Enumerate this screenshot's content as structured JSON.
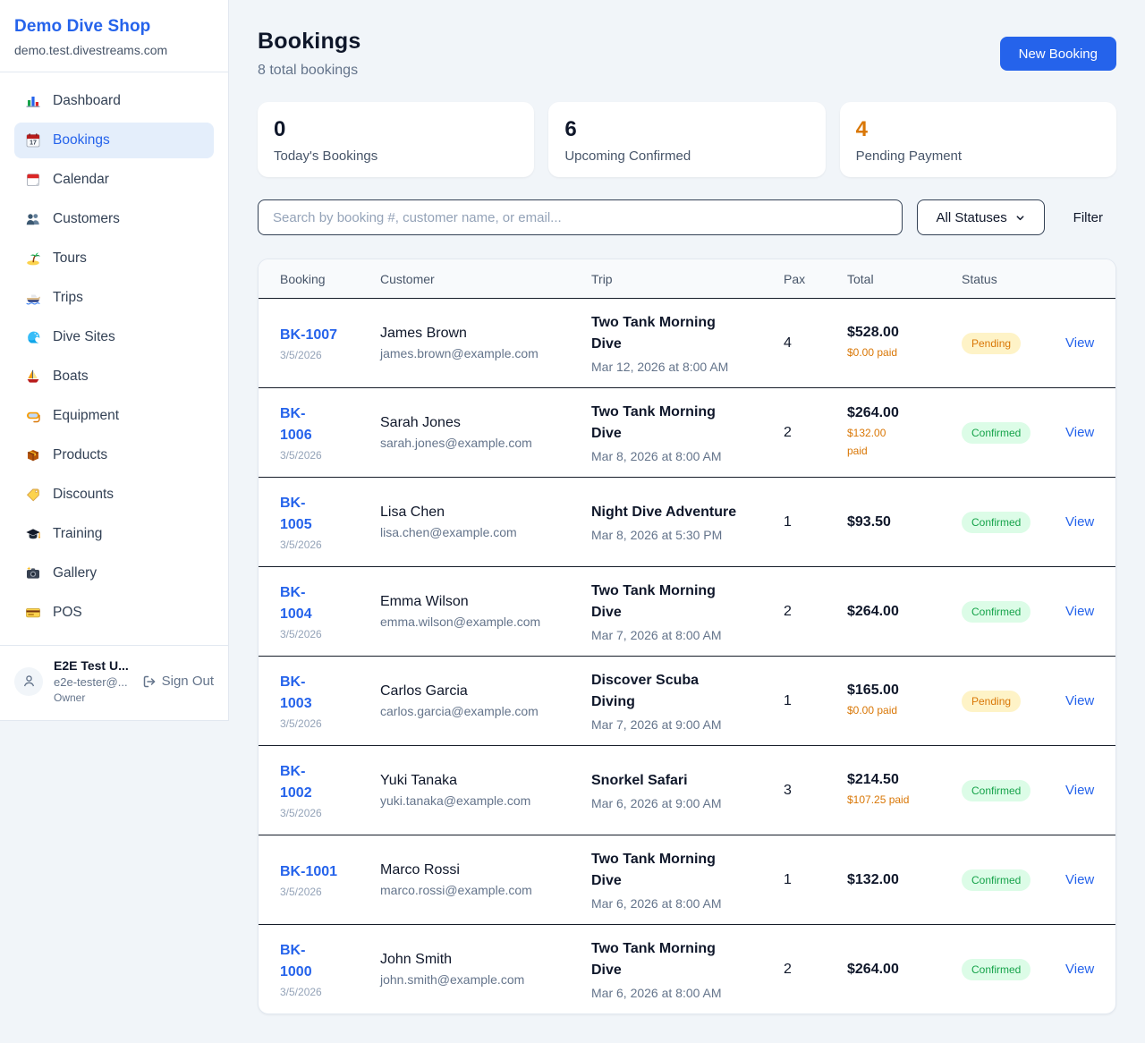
{
  "brand": {
    "name": "Demo Dive Shop",
    "domain": "demo.test.divestreams.com"
  },
  "sidebar": {
    "items": [
      {
        "icon": "bar-chart-icon",
        "label": "Dashboard",
        "active": false
      },
      {
        "icon": "bookings-calendar-icon",
        "label": "Bookings",
        "active": true
      },
      {
        "icon": "tear-off-calendar-icon",
        "label": "Calendar",
        "active": false
      },
      {
        "icon": "people-icon",
        "label": "Customers",
        "active": false
      },
      {
        "icon": "island-icon",
        "label": "Tours",
        "active": false
      },
      {
        "icon": "speedboat-icon",
        "label": "Trips",
        "active": false
      },
      {
        "icon": "wave-icon",
        "label": "Dive Sites",
        "active": false
      },
      {
        "icon": "sailboat-icon",
        "label": "Boats",
        "active": false
      },
      {
        "icon": "dive-mask-icon",
        "label": "Equipment",
        "active": false
      },
      {
        "icon": "package-icon",
        "label": "Products",
        "active": false
      },
      {
        "icon": "tag-icon",
        "label": "Discounts",
        "active": false
      },
      {
        "icon": "graduation-cap-icon",
        "label": "Training",
        "active": false
      },
      {
        "icon": "camera-icon",
        "label": "Gallery",
        "active": false
      },
      {
        "icon": "credit-card-icon",
        "label": "POS",
        "active": false
      }
    ]
  },
  "user": {
    "name": "E2E Test U...",
    "email": "e2e-tester@...",
    "role": "Owner",
    "signout_label": "Sign Out"
  },
  "header": {
    "title": "Bookings",
    "subtitle": "8 total bookings",
    "new_booking_label": "New Booking"
  },
  "stats": [
    {
      "value": "0",
      "label": "Today's Bookings",
      "color": "#0f172a"
    },
    {
      "value": "6",
      "label": "Upcoming Confirmed",
      "color": "#0f172a"
    },
    {
      "value": "4",
      "label": "Pending Payment",
      "color": "#d97706"
    }
  ],
  "filters": {
    "search_placeholder": "Search by booking #, customer name, or email...",
    "status_selected": "All Statuses",
    "filter_label": "Filter"
  },
  "table": {
    "columns": [
      "Booking",
      "Customer",
      "Trip",
      "Pax",
      "Total",
      "Status"
    ],
    "view_label": "View",
    "rows": [
      {
        "id": "BK-1007",
        "date": "3/5/2026",
        "customer": "James Brown",
        "email": "james.brown@example.com",
        "trip": "Two Tank Morning\nDive",
        "trip_date": "Mar 12, 2026 at 8:00 AM",
        "pax": "4",
        "total": "$528.00",
        "paid": "$0.00 paid",
        "status": "Pending"
      },
      {
        "id": "BK-\n1006",
        "date": "3/5/2026",
        "customer": "Sarah Jones",
        "email": "sarah.jones@example.com",
        "trip": "Two Tank Morning\nDive",
        "trip_date": "Mar 8, 2026 at 8:00 AM",
        "pax": "2",
        "total": "$264.00",
        "paid": "$132.00\npaid",
        "status": "Confirmed"
      },
      {
        "id": "BK-\n1005",
        "date": "3/5/2026",
        "customer": "Lisa Chen",
        "email": "lisa.chen@example.com",
        "trip": "Night Dive Adventure",
        "trip_date": "Mar 8, 2026 at 5:30 PM",
        "pax": "1",
        "total": "$93.50",
        "paid": "",
        "status": "Confirmed"
      },
      {
        "id": "BK-\n1004",
        "date": "3/5/2026",
        "customer": "Emma Wilson",
        "email": "emma.wilson@example.com",
        "trip": "Two Tank Morning\nDive",
        "trip_date": "Mar 7, 2026 at 8:00 AM",
        "pax": "2",
        "total": "$264.00",
        "paid": "",
        "status": "Confirmed"
      },
      {
        "id": "BK-\n1003",
        "date": "3/5/2026",
        "customer": "Carlos Garcia",
        "email": "carlos.garcia@example.com",
        "trip": "Discover Scuba\nDiving",
        "trip_date": "Mar 7, 2026 at 9:00 AM",
        "pax": "1",
        "total": "$165.00",
        "paid": "$0.00 paid",
        "status": "Pending"
      },
      {
        "id": "BK-\n1002",
        "date": "3/5/2026",
        "customer": "Yuki Tanaka",
        "email": "yuki.tanaka@example.com",
        "trip": "Snorkel Safari",
        "trip_date": "Mar 6, 2026 at 9:00 AM",
        "pax": "3",
        "total": "$214.50",
        "paid": "$107.25 paid",
        "status": "Confirmed"
      },
      {
        "id": "BK-1001",
        "date": "3/5/2026",
        "customer": "Marco Rossi",
        "email": "marco.rossi@example.com",
        "trip": "Two Tank Morning\nDive",
        "trip_date": "Mar 6, 2026 at 8:00 AM",
        "pax": "1",
        "total": "$132.00",
        "paid": "",
        "status": "Confirmed"
      },
      {
        "id": "BK-\n1000",
        "date": "3/5/2026",
        "customer": "John Smith",
        "email": "john.smith@example.com",
        "trip": "Two Tank Morning\nDive",
        "trip_date": "Mar 6, 2026 at 8:00 AM",
        "pax": "2",
        "total": "$264.00",
        "paid": "",
        "status": "Confirmed"
      }
    ]
  },
  "colors": {
    "accent": "#2563eb",
    "pending_text": "#d97706",
    "pending_bg": "#fef3c7",
    "confirmed_text": "#16a34a",
    "confirmed_bg": "#dcfce7",
    "page_bg": "#f1f5f9"
  }
}
